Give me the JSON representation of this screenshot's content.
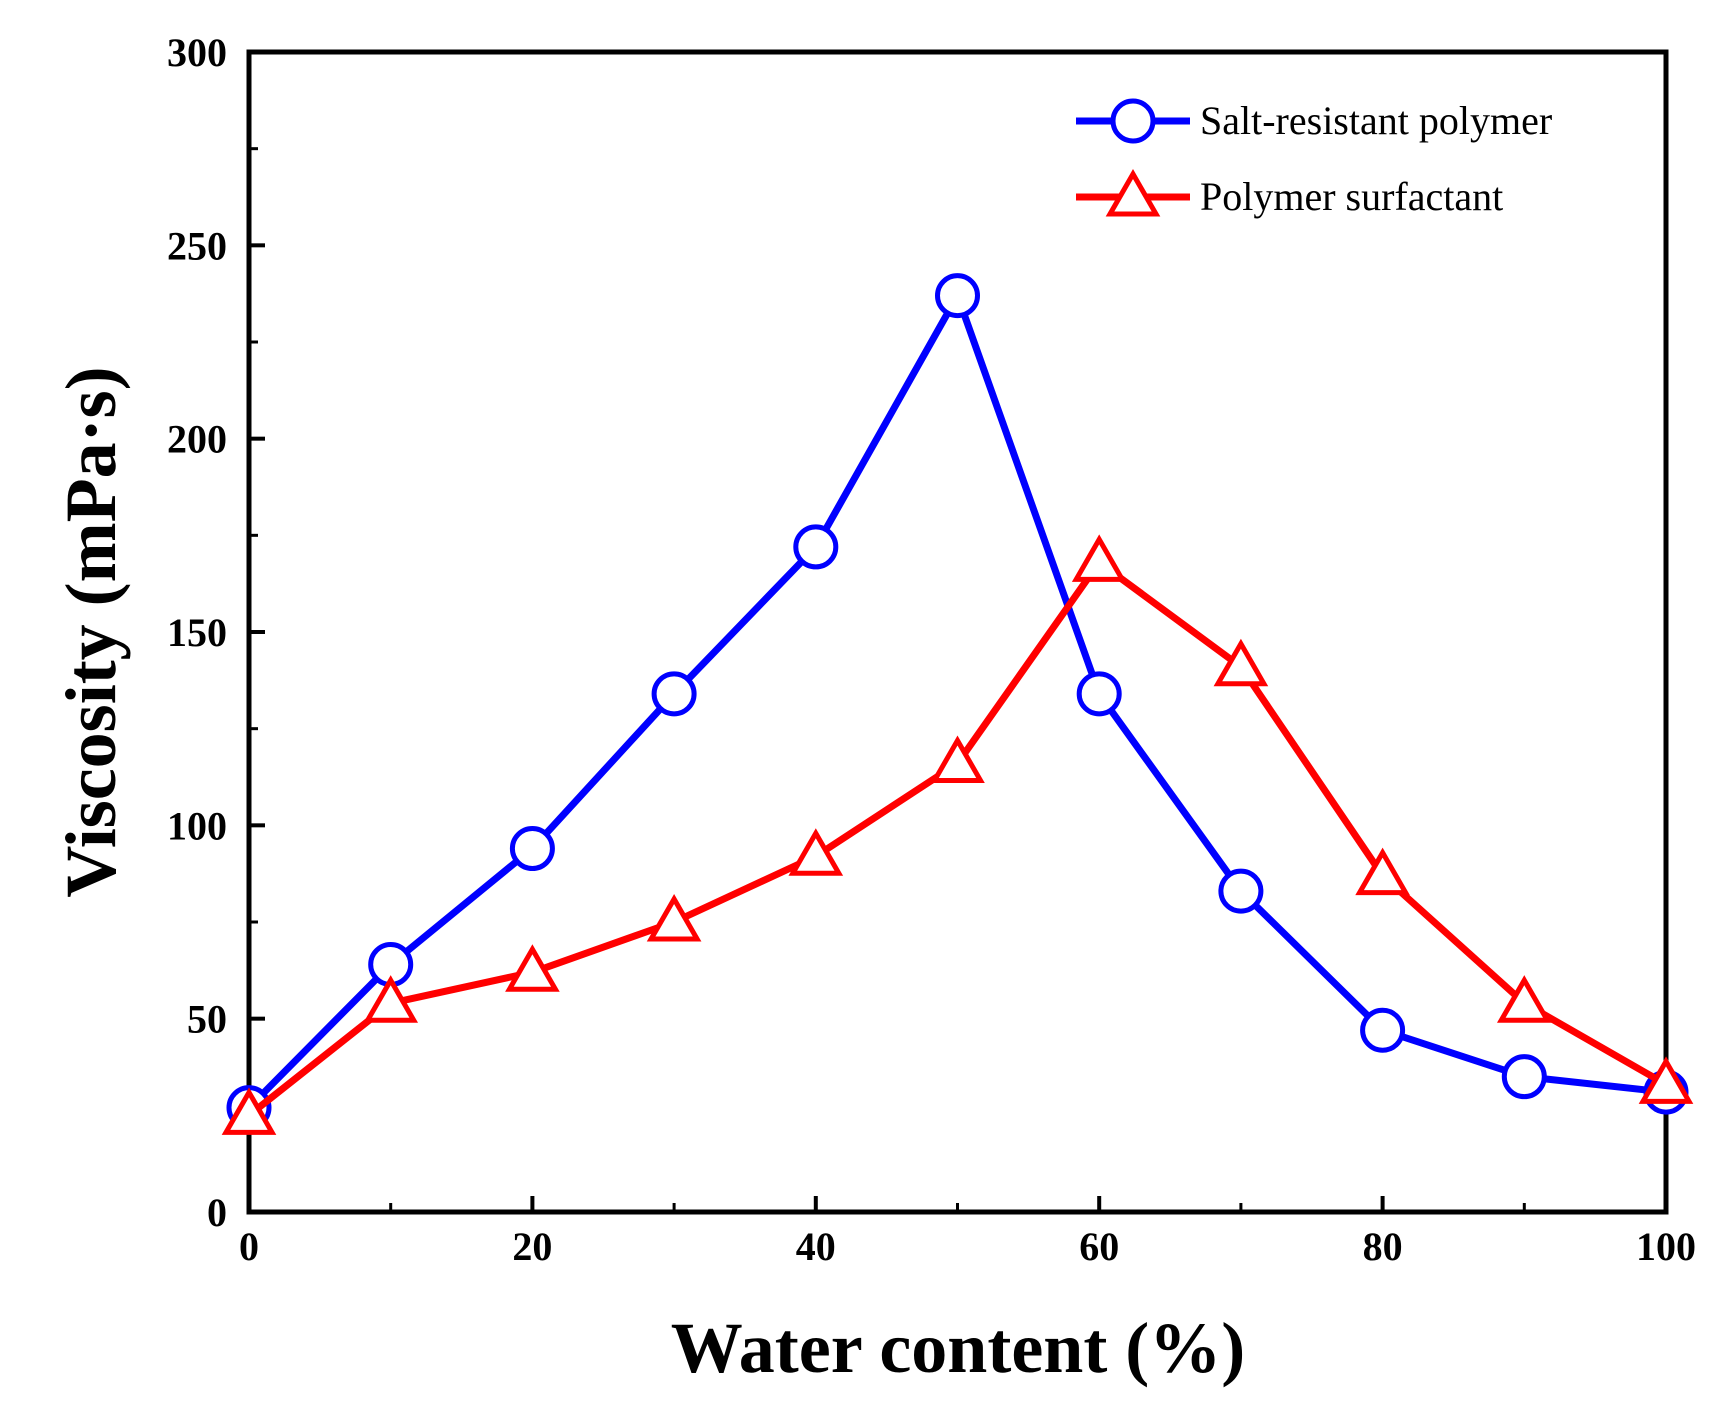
{
  "chart_data": {
    "type": "line",
    "title": "",
    "xlabel": "Water content (%)",
    "ylabel": "Viscosity (mPa·s)",
    "xlim": [
      0,
      100
    ],
    "ylim": [
      0,
      300
    ],
    "xticks": [
      0,
      20,
      40,
      60,
      80,
      100
    ],
    "yticks": [
      0,
      50,
      100,
      150,
      200,
      250,
      300
    ],
    "grid": false,
    "legend_position": "top-right",
    "x": [
      0,
      10,
      20,
      30,
      40,
      50,
      60,
      70,
      80,
      90,
      100
    ],
    "series": [
      {
        "name": "Salt-resistant polymer",
        "color": "#0000ff",
        "marker": "circle",
        "values": [
          27,
          64,
          94,
          134,
          172,
          237,
          134,
          83,
          47,
          35,
          31
        ]
      },
      {
        "name": "Polymer surfactant",
        "color": "#ff0000",
        "marker": "triangle",
        "values": [
          25,
          54,
          62,
          75,
          92,
          116,
          168,
          141,
          87,
          54,
          33
        ]
      }
    ]
  }
}
